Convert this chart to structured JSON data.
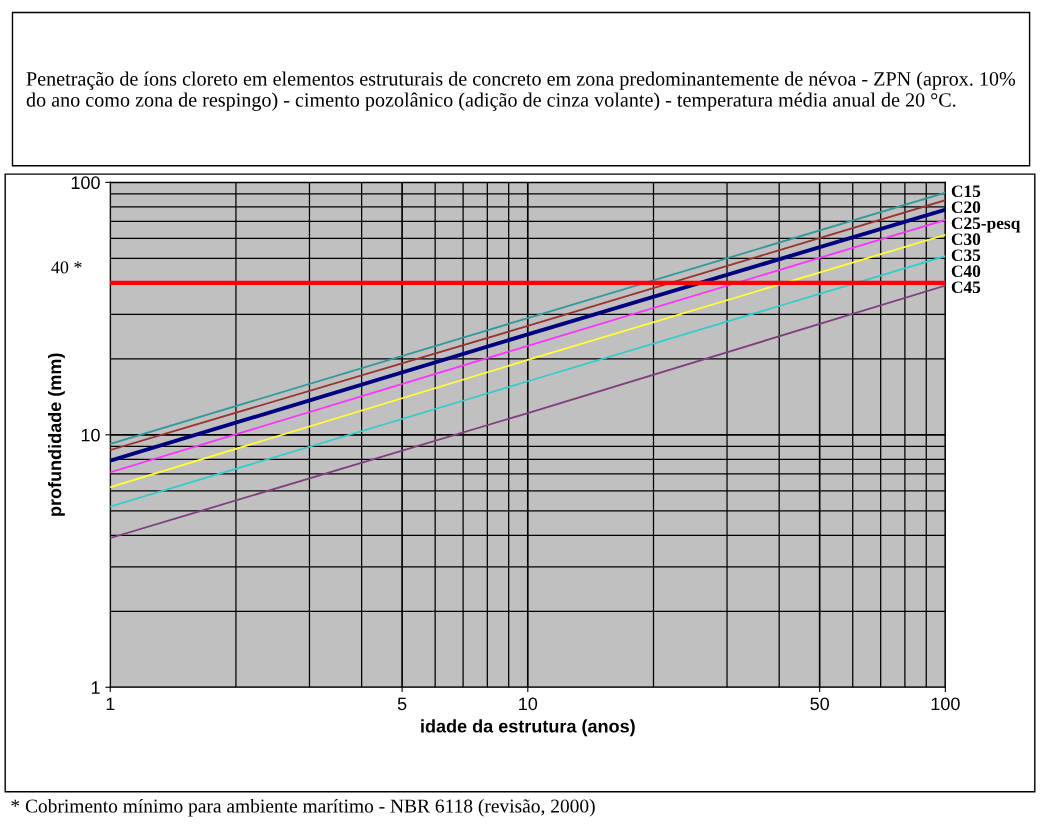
{
  "chart_data": {
    "type": "line",
    "title": "Penetração de íons cloreto em elementos estruturais de concreto em zona predominantemente de névoa - ZPN (aprox. 10% do ano como zona de respingo) - cimento pozolânico (adição de cinza volante) - temperatura média anual de 20 °C.",
    "xlabel": "idade da estrutura (anos)",
    "ylabel": "profundidade (mm)",
    "x": [
      1,
      10,
      100
    ],
    "series": [
      {
        "name": "C15",
        "color": "#339999",
        "values": [
          9.2,
          29,
          91
        ]
      },
      {
        "name": "C20",
        "color": "#993333",
        "values": [
          8.7,
          27,
          85
        ]
      },
      {
        "name": "C25-pesq",
        "color": "#000080",
        "values": [
          7.9,
          25,
          78
        ]
      },
      {
        "name": "C30",
        "color": "#ff33ff",
        "values": [
          7.1,
          22.5,
          71
        ]
      },
      {
        "name": "C35",
        "color": "#ffff33",
        "values": [
          6.2,
          19.8,
          62
        ]
      },
      {
        "name": "C40",
        "color": "#33cccc",
        "values": [
          5.2,
          16.3,
          51
        ]
      },
      {
        "name": "C45",
        "color": "#7f3f7f",
        "values": [
          3.9,
          12.2,
          39
        ]
      }
    ],
    "log": "xy",
    "xlim": [
      1,
      100
    ],
    "ylim": [
      1,
      100
    ],
    "xticks": [
      1,
      5,
      10,
      50,
      100
    ],
    "yticks": [
      1,
      10,
      100
    ],
    "grid": true,
    "legend": false,
    "marker": "none",
    "line_style": "solid",
    "ref_lines": [
      {
        "axis": "y",
        "value": 40,
        "label": "40 *",
        "color": "#ff0000"
      }
    ],
    "annotations": [
      "* Cobrimento mínimo para ambiente marítimo - NBR 6118 (revisão, 2000)"
    ]
  }
}
